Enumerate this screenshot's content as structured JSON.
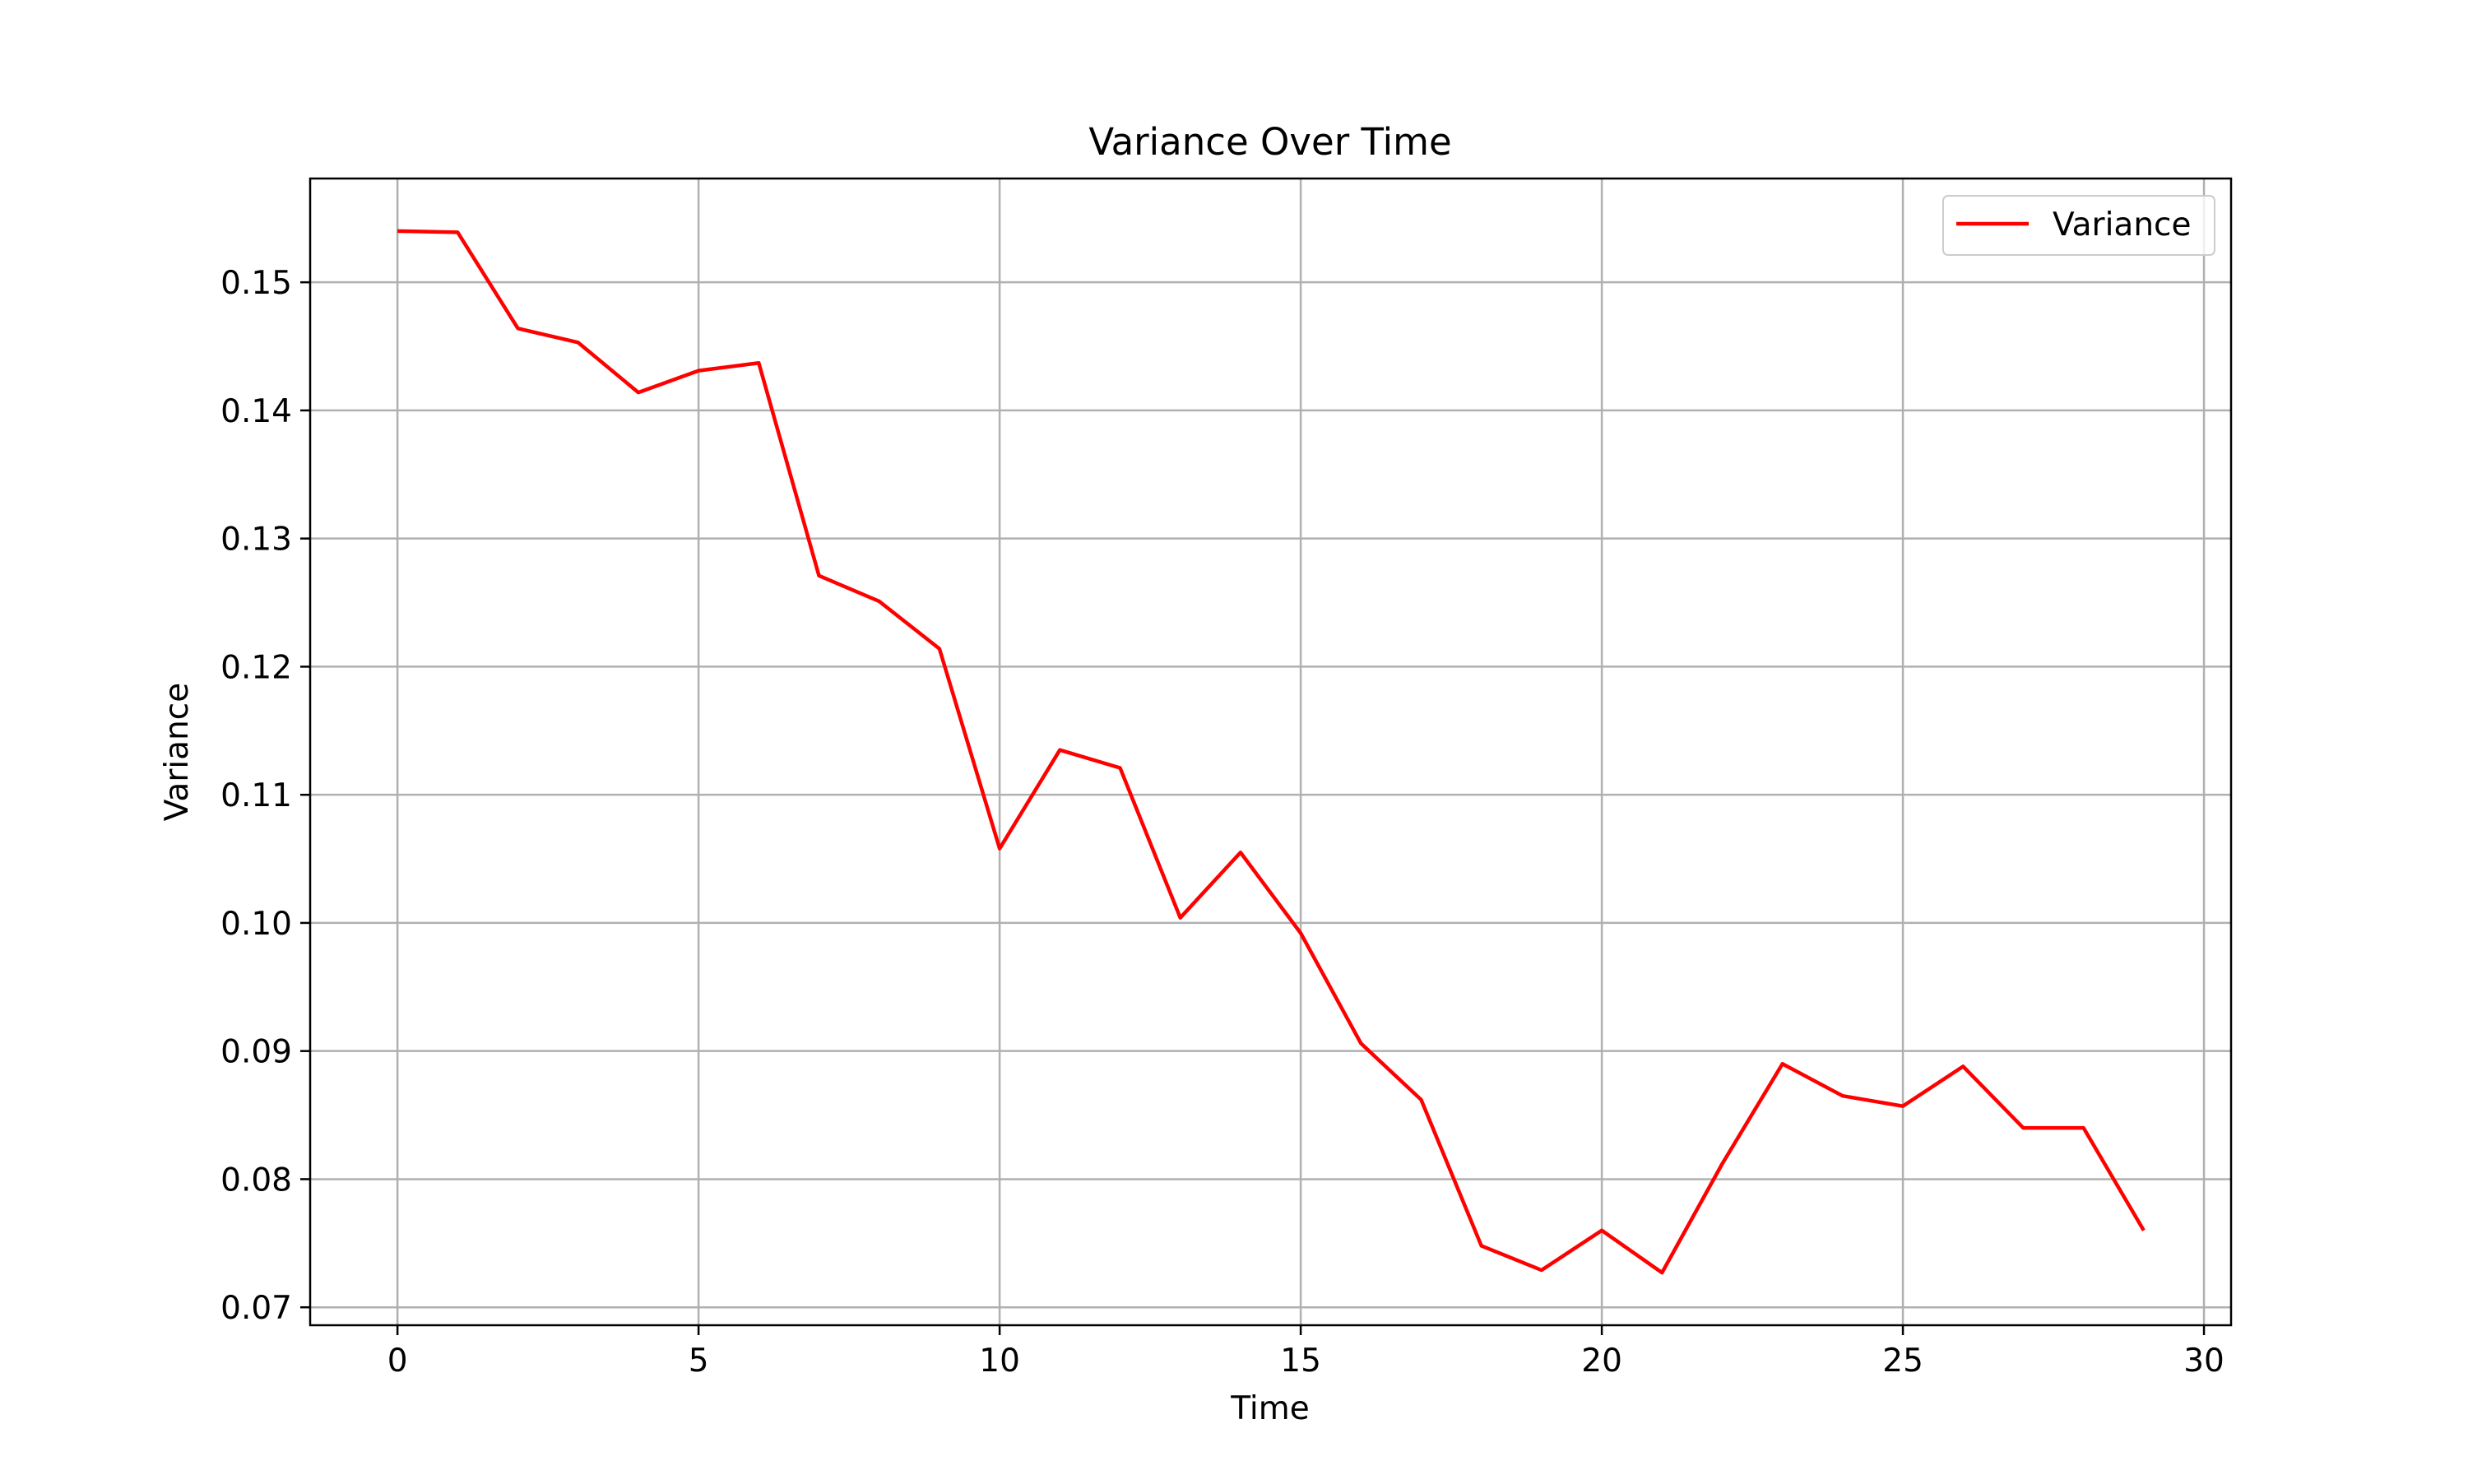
{
  "chart_data": {
    "type": "line",
    "title": "Variance Over Time",
    "xlabel": "Time",
    "ylabel": "Variance",
    "xlim": [
      -1.45,
      30.45
    ],
    "ylim": [
      0.0686,
      0.1581
    ],
    "xticks": [
      0,
      5,
      10,
      15,
      20,
      25,
      30
    ],
    "xtick_labels": [
      "0",
      "5",
      "10",
      "15",
      "20",
      "25",
      "30"
    ],
    "yticks": [
      0.07,
      0.08,
      0.09,
      0.1,
      0.11,
      0.12,
      0.13,
      0.14,
      0.15
    ],
    "ytick_labels": [
      "0.07",
      "0.08",
      "0.09",
      "0.10",
      "0.11",
      "0.12",
      "0.13",
      "0.14",
      "0.15"
    ],
    "grid": true,
    "legend_position": "top-right",
    "series": [
      {
        "name": "Variance",
        "color": "#ff0000",
        "x": [
          0,
          1,
          2,
          3,
          4,
          5,
          6,
          7,
          8,
          9,
          10,
          11,
          12,
          13,
          14,
          15,
          16,
          17,
          18,
          19,
          20,
          21,
          22,
          23,
          24,
          25,
          26,
          27,
          28,
          29
        ],
        "values": [
          0.154,
          0.1539,
          0.1464,
          0.1453,
          0.1414,
          0.1431,
          0.1437,
          0.1271,
          0.1251,
          0.1214,
          0.1058,
          0.1135,
          0.1121,
          0.1004,
          0.1055,
          0.0992,
          0.0906,
          0.0862,
          0.0748,
          0.0729,
          0.076,
          0.0727,
          0.0812,
          0.089,
          0.0865,
          0.0857,
          0.0888,
          0.084,
          0.084,
          0.076
        ]
      }
    ]
  }
}
